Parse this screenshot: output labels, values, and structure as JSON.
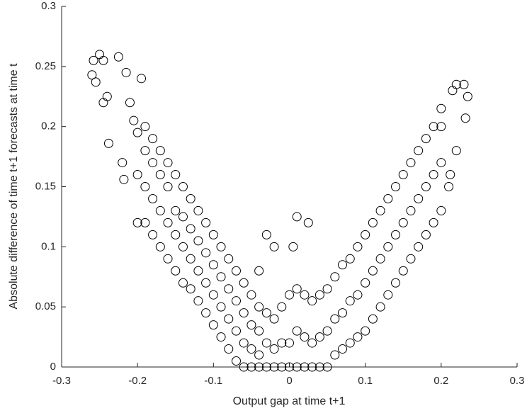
{
  "chart_data": {
    "type": "scatter",
    "x_label": "Output gap at time t+1",
    "y_label": "Absolute difference of time t+1 forecasts at time t",
    "marker_color": "#000000",
    "grid": false,
    "xlim": [
      -0.3,
      0.3
    ],
    "xticks": [
      -0.3,
      -0.2,
      -0.1,
      0,
      0.1,
      0.2,
      0.3
    ],
    "ylim": [
      0,
      0.3
    ],
    "yticks": [
      0,
      0.05,
      0.1,
      0.15,
      0.2,
      0.25,
      0.3
    ],
    "x": [
      -0.26,
      -0.258,
      -0.25,
      -0.245,
      -0.255,
      -0.24,
      -0.245,
      -0.238,
      -0.225,
      -0.215,
      -0.22,
      -0.218,
      -0.21,
      -0.205,
      -0.195,
      0.235,
      0.232,
      0.23,
      0.22,
      0.215,
      0.22,
      0.21,
      0.212,
      0.2,
      -0.04,
      -0.02,
      0.01,
      0.025,
      0.005,
      -0.03,
      -0.2,
      -0.2,
      -0.2,
      -0.19,
      -0.19,
      -0.19,
      -0.19,
      -0.18,
      -0.18,
      -0.18,
      -0.18,
      -0.17,
      -0.17,
      -0.17,
      -0.17,
      -0.16,
      -0.16,
      -0.16,
      -0.16,
      -0.15,
      -0.15,
      -0.15,
      -0.15,
      -0.14,
      -0.14,
      -0.14,
      -0.14,
      -0.13,
      -0.13,
      -0.13,
      -0.13,
      -0.12,
      -0.12,
      -0.12,
      -0.12,
      -0.11,
      -0.11,
      -0.11,
      -0.11,
      -0.1,
      -0.1,
      -0.1,
      -0.1,
      -0.09,
      -0.09,
      -0.09,
      -0.09,
      -0.08,
      -0.08,
      -0.08,
      -0.08,
      -0.07,
      -0.07,
      -0.07,
      -0.07,
      -0.06,
      -0.06,
      -0.06,
      -0.06,
      -0.05,
      -0.05,
      -0.05,
      -0.05,
      -0.04,
      -0.04,
      -0.04,
      -0.04,
      -0.03,
      -0.03,
      -0.03,
      -0.02,
      -0.02,
      -0.02,
      -0.01,
      -0.01,
      -0.01,
      0,
      0,
      0,
      0.01,
      0.01,
      0.01,
      0.02,
      0.02,
      0.02,
      0.03,
      0.03,
      0.03,
      0.04,
      0.04,
      0.04,
      0.05,
      0.05,
      0.05,
      0.06,
      0.06,
      0.06,
      0.07,
      0.07,
      0.07,
      0.08,
      0.08,
      0.08,
      0.09,
      0.09,
      0.09,
      0.1,
      0.1,
      0.1,
      0.11,
      0.11,
      0.11,
      0.12,
      0.12,
      0.12,
      0.13,
      0.13,
      0.13,
      0.14,
      0.14,
      0.14,
      0.15,
      0.15,
      0.15,
      0.16,
      0.16,
      0.16,
      0.17,
      0.17,
      0.17,
      0.18,
      0.18,
      0.18,
      0.19,
      0.19,
      0.19,
      0.2,
      0.2,
      0.2
    ],
    "values": [
      0.243,
      0.255,
      0.26,
      0.255,
      0.237,
      0.225,
      0.22,
      0.186,
      0.258,
      0.245,
      0.17,
      0.156,
      0.22,
      0.205,
      0.24,
      0.225,
      0.207,
      0.235,
      0.235,
      0.23,
      0.18,
      0.15,
      0.16,
      0.215,
      0.08,
      0.1,
      0.125,
      0.12,
      0.1,
      0.11,
      0.12,
      0.16,
      0.195,
      0.12,
      0.15,
      0.18,
      0.2,
      0.11,
      0.14,
      0.17,
      0.19,
      0.1,
      0.13,
      0.16,
      0.18,
      0.09,
      0.12,
      0.15,
      0.17,
      0.08,
      0.11,
      0.13,
      0.16,
      0.07,
      0.1,
      0.125,
      0.15,
      0.065,
      0.09,
      0.115,
      0.14,
      0.055,
      0.08,
      0.105,
      0.13,
      0.045,
      0.07,
      0.095,
      0.12,
      0.035,
      0.06,
      0.085,
      0.11,
      0.025,
      0.05,
      0.075,
      0.1,
      0.015,
      0.04,
      0.065,
      0.09,
      0.005,
      0.03,
      0.055,
      0.08,
      0,
      0.02,
      0.045,
      0.07,
      0,
      0.015,
      0.035,
      0.06,
      0,
      0.01,
      0.03,
      0.05,
      0,
      0.02,
      0.045,
      0,
      0.015,
      0.04,
      0,
      0.02,
      0.05,
      0,
      0.02,
      0.06,
      0,
      0.03,
      0.065,
      0,
      0.025,
      0.06,
      0,
      0.02,
      0.055,
      0,
      0.025,
      0.06,
      0,
      0.03,
      0.065,
      0.01,
      0.04,
      0.075,
      0.015,
      0.045,
      0.085,
      0.02,
      0.055,
      0.09,
      0.025,
      0.06,
      0.1,
      0.03,
      0.07,
      0.11,
      0.04,
      0.08,
      0.12,
      0.05,
      0.09,
      0.13,
      0.06,
      0.1,
      0.14,
      0.07,
      0.11,
      0.15,
      0.08,
      0.12,
      0.16,
      0.09,
      0.13,
      0.17,
      0.1,
      0.14,
      0.18,
      0.11,
      0.15,
      0.19,
      0.12,
      0.16,
      0.2,
      0.13,
      0.17,
      0.2
    ]
  }
}
